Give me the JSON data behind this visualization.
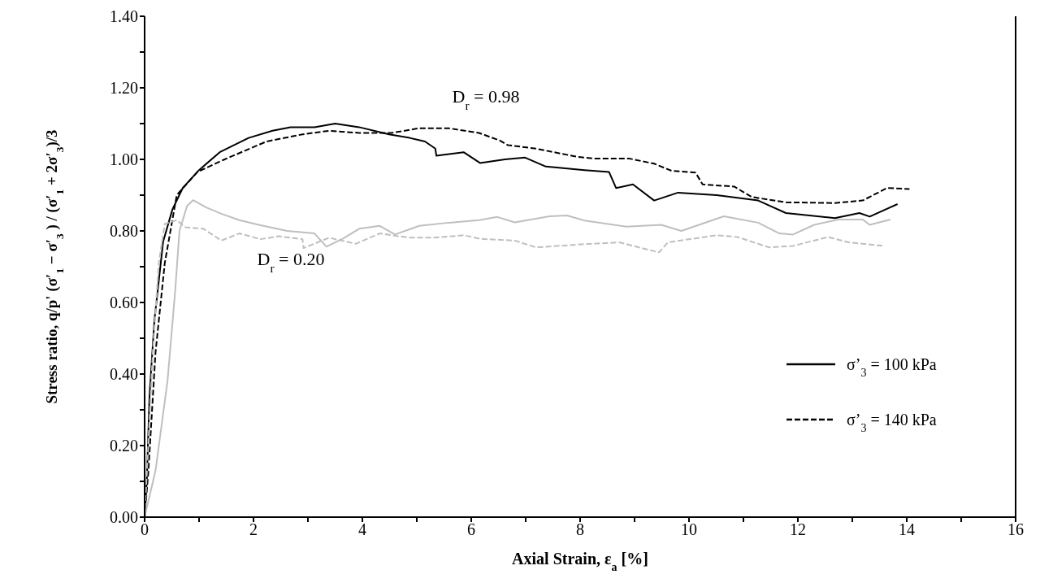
{
  "chart_data": {
    "type": "line",
    "xlabel": "Axial Strain, ε$_{a}$ [%]",
    "ylabel": "Stress ratio, q/p' (σ′$_{1}$ − σ′$_{3}$ ) / (σ′$_{1}$ + 2σ′$_{3}$)/3",
    "xlim": [
      0,
      16
    ],
    "xticks": [
      0,
      {
        "value": 1,
        "label": null
      },
      2,
      {
        "value": 3,
        "label": null
      },
      4,
      {
        "value": 5,
        "label": null
      },
      6,
      {
        "value": 7,
        "label": null
      },
      8,
      {
        "value": 9,
        "label": null
      },
      10,
      {
        "value": 11,
        "label": null
      },
      12,
      {
        "value": 13,
        "label": null
      },
      14,
      {
        "value": 15,
        "label": null
      },
      16
    ],
    "ylim": [
      0,
      1.4
    ],
    "yticks": [
      {
        "value": 0,
        "label": "0.00"
      },
      {
        "value": 0.1,
        "label": null
      },
      {
        "value": 0.2,
        "label": "0.20"
      },
      {
        "value": 0.3,
        "label": null
      },
      {
        "value": 0.4,
        "label": "0.40"
      },
      {
        "value": 0.5,
        "label": null
      },
      {
        "value": 0.6,
        "label": "0.60"
      },
      {
        "value": 0.7,
        "label": null
      },
      {
        "value": 0.8,
        "label": "0.80"
      },
      {
        "value": 0.9,
        "label": null
      },
      {
        "value": 1.0,
        "label": "1.00"
      },
      {
        "value": 1.1,
        "label": null
      },
      {
        "value": 1.2,
        "label": "1.20"
      },
      {
        "value": 1.3,
        "label": null
      },
      {
        "value": 1.4,
        "label": "1.40"
      }
    ],
    "grid": false,
    "legend": "bottom right",
    "marker": "none",
    "annotations": [
      "D$_{r}$ = 0.98",
      "D$_{r}$ = 0.20"
    ],
    "series": [
      {
        "name": "σ’$_{3}$ = 100 kPa",
        "color": "#000000",
        "line_style": "solid",
        "x": [
          0,
          0.04,
          0.09,
          0.18,
          0.34,
          0.51,
          0.7,
          1.0,
          1.38,
          1.91,
          2.35,
          2.68,
          3.12,
          3.5,
          3.94,
          4.49,
          4.87,
          5.15,
          5.34,
          5.36,
          5.86,
          6.16,
          6.62,
          6.99,
          7.37,
          8.08,
          8.53,
          8.66,
          8.97,
          9.36,
          9.8,
          10.51,
          11.27,
          11.78,
          12.68,
          13.13,
          13.32,
          13.83
        ],
        "values": [
          0,
          0.1,
          0.34,
          0.55,
          0.77,
          0.86,
          0.92,
          0.97,
          1.02,
          1.06,
          1.08,
          1.09,
          1.09,
          1.1,
          1.09,
          1.07,
          1.06,
          1.05,
          1.03,
          1.01,
          1.02,
          0.99,
          1.0,
          1.005,
          0.98,
          0.97,
          0.965,
          0.92,
          0.93,
          0.885,
          0.907,
          0.9,
          0.885,
          0.85,
          0.836,
          0.85,
          0.84,
          0.875
        ]
      },
      {
        "name": "σ’$_{3}$ = 140 kPa",
        "color": "#000000",
        "line_style": "dashed",
        "x": [
          0,
          0.07,
          0.2,
          0.37,
          0.59,
          0.97,
          1.47,
          2.24,
          2.9,
          3.39,
          3.94,
          4.54,
          5.04,
          5.59,
          6.14,
          6.52,
          6.67,
          7.19,
          7.95,
          8.27,
          8.91,
          9.36,
          9.68,
          10.12,
          10.25,
          10.83,
          11.15,
          11.78,
          12.68,
          13.19,
          13.64,
          14.05
        ],
        "values": [
          0,
          0.13,
          0.46,
          0.71,
          0.9,
          0.965,
          1.0,
          1.05,
          1.07,
          1.08,
          1.074,
          1.074,
          1.087,
          1.087,
          1.074,
          1.053,
          1.04,
          1.03,
          1.007,
          1.002,
          1.002,
          0.988,
          0.968,
          0.963,
          0.93,
          0.924,
          0.895,
          0.88,
          0.878,
          0.885,
          0.92,
          0.917
        ]
      },
      {
        "color": "#bfbfbf",
        "line_style": "solid",
        "x": [
          0,
          0.2,
          0.42,
          0.56,
          0.64,
          0.78,
          0.89,
          1.14,
          1.41,
          1.74,
          2.13,
          2.62,
          3.12,
          3.34,
          3.66,
          3.94,
          4.32,
          4.6,
          5.04,
          5.59,
          6.14,
          6.48,
          6.8,
          7.44,
          7.76,
          8.08,
          8.85,
          9.49,
          9.86,
          10.64,
          11.27,
          11.66,
          11.91,
          12.3,
          12.74,
          13.19,
          13.32,
          13.7
        ],
        "values": [
          0,
          0.13,
          0.38,
          0.63,
          0.8,
          0.87,
          0.886,
          0.865,
          0.848,
          0.83,
          0.816,
          0.8,
          0.793,
          0.756,
          0.78,
          0.806,
          0.814,
          0.79,
          0.814,
          0.823,
          0.83,
          0.839,
          0.824,
          0.841,
          0.843,
          0.829,
          0.812,
          0.817,
          0.8,
          0.841,
          0.823,
          0.793,
          0.79,
          0.817,
          0.832,
          0.832,
          0.817,
          0.832
        ]
      },
      {
        "color": "#bfbfbf",
        "line_style": "dashed",
        "x": [
          0,
          0.07,
          0.15,
          0.26,
          0.37,
          0.59,
          0.75,
          1.08,
          1.41,
          1.74,
          2.13,
          2.46,
          2.9,
          2.92,
          3.39,
          3.88,
          4.32,
          4.87,
          5.31,
          5.86,
          6.16,
          6.8,
          7.19,
          8.08,
          8.72,
          9.45,
          9.61,
          10.51,
          10.89,
          11.47,
          11.91,
          12.55,
          12.93,
          13.58
        ],
        "values": [
          0,
          0.21,
          0.46,
          0.71,
          0.82,
          0.83,
          0.81,
          0.806,
          0.773,
          0.793,
          0.777,
          0.785,
          0.777,
          0.752,
          0.781,
          0.764,
          0.793,
          0.781,
          0.781,
          0.788,
          0.778,
          0.773,
          0.754,
          0.763,
          0.768,
          0.74,
          0.768,
          0.788,
          0.783,
          0.754,
          0.758,
          0.783,
          0.768,
          0.758
        ]
      }
    ]
  }
}
